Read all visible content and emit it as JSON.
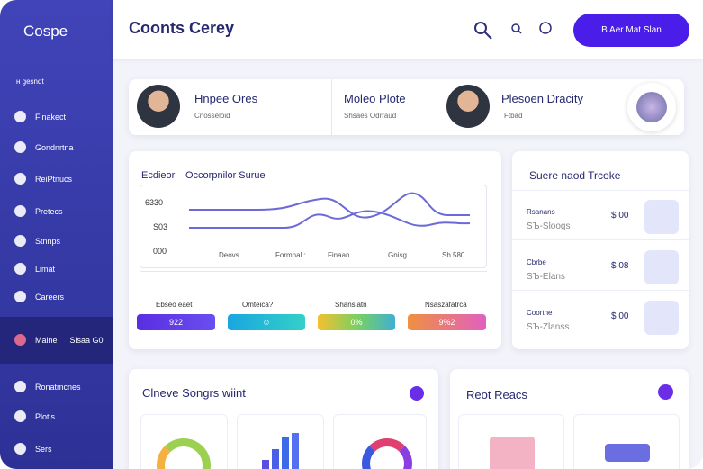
{
  "sidebar": {
    "logo": "Cospe",
    "section": "ʜ gesnɑt",
    "items": [
      "Finakect",
      "Gondnrtna",
      "ReiPtnucs",
      "Pretecs",
      "Stnnps",
      "Limat",
      "Careers"
    ],
    "active": {
      "label": "Maine",
      "extra": "Sisaa G0"
    },
    "bottom_items": [
      "Ronatmcnes",
      "Plotis",
      "Sers"
    ]
  },
  "header": {
    "title": "Coonts Cerey",
    "button": "B Aer Mat Slan"
  },
  "profiles": [
    {
      "name": "Hnpee Ores",
      "role": "Cnosseloid"
    },
    {
      "name": "Moleo Plote",
      "role": "Shsaes Odrraud"
    },
    {
      "name": "Plesoen Dracity",
      "role": "Ftbad"
    }
  ],
  "chart_card": {
    "title": "Ecdieor",
    "subtitle": "Occorpnilor Surue",
    "y_labels": [
      "6330",
      "S03",
      "000"
    ],
    "x_labels": [
      "Deovs",
      "Formnal :",
      "Finaan",
      "Gnisg",
      "Sb 580"
    ],
    "stats": [
      {
        "label": "Ebseo eaet",
        "value": "922"
      },
      {
        "label": "Omteica?"
      },
      {
        "label": "Shansiatn",
        "value": "0%"
      },
      {
        "label": "Nsaszafatrca",
        "value": "9%2"
      }
    ]
  },
  "side_card": {
    "title": "Suere naod Trcoke",
    "rows": [
      {
        "name": "Rsanans",
        "detail": "ЅЪ-Sloogs",
        "amount": "$ 00"
      },
      {
        "name": "Cbrbe",
        "detail": "ЅЪ-Elans",
        "amount": "$ 08"
      },
      {
        "name": "Coortne",
        "detail": "ЅЪ-Zlanss",
        "amount": "$ 00"
      }
    ]
  },
  "bottom_left": {
    "title": "Clneve Songrs wiint"
  },
  "bottom_right": {
    "title": "Reot Reacs"
  }
}
